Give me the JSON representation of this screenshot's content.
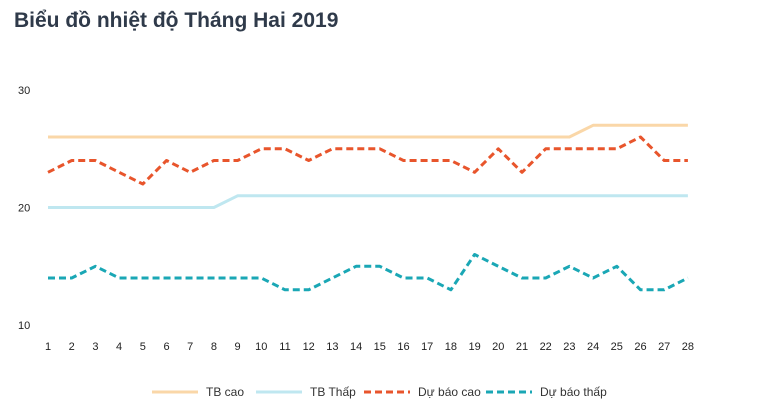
{
  "chart_data": {
    "type": "line",
    "title": "Biểu đồ nhiệt độ Tháng Hai 2019",
    "xlabel": "",
    "ylabel": "",
    "x": [
      1,
      2,
      3,
      4,
      5,
      6,
      7,
      8,
      9,
      10,
      11,
      12,
      13,
      14,
      15,
      16,
      17,
      18,
      19,
      20,
      21,
      22,
      23,
      24,
      25,
      26,
      27,
      28
    ],
    "ylim": [
      10,
      30
    ],
    "yticks": [
      10,
      20,
      30
    ],
    "grid": false,
    "legend_position": "bottom",
    "series": [
      {
        "name": "TB cao",
        "color": "#fad7a8",
        "style": "solid",
        "values": [
          26,
          26,
          26,
          26,
          26,
          26,
          26,
          26,
          26,
          26,
          26,
          26,
          26,
          26,
          26,
          26,
          26,
          26,
          26,
          26,
          26,
          26,
          26,
          27,
          27,
          27,
          27,
          27
        ]
      },
      {
        "name": "TB Thấp",
        "color": "#bfe7f0",
        "style": "solid",
        "values": [
          20,
          20,
          20,
          20,
          20,
          20,
          20,
          20,
          21,
          21,
          21,
          21,
          21,
          21,
          21,
          21,
          21,
          21,
          21,
          21,
          21,
          21,
          21,
          21,
          21,
          21,
          21,
          21
        ]
      },
      {
        "name": "Dự báo cao",
        "color": "#e8552c",
        "style": "dashed",
        "values": [
          23,
          24,
          24,
          23,
          22,
          24,
          23,
          24,
          24,
          25,
          25,
          24,
          25,
          25,
          25,
          24,
          24,
          24,
          23,
          25,
          23,
          25,
          25,
          25,
          25,
          26,
          24,
          24
        ]
      },
      {
        "name": "Dự báo thấp",
        "color": "#1aa7b5",
        "style": "dashed",
        "values": [
          14,
          14,
          15,
          14,
          14,
          14,
          14,
          14,
          14,
          14,
          13,
          13,
          14,
          15,
          15,
          14,
          14,
          13,
          16,
          15,
          14,
          14,
          15,
          14,
          15,
          13,
          13,
          14
        ]
      }
    ]
  }
}
